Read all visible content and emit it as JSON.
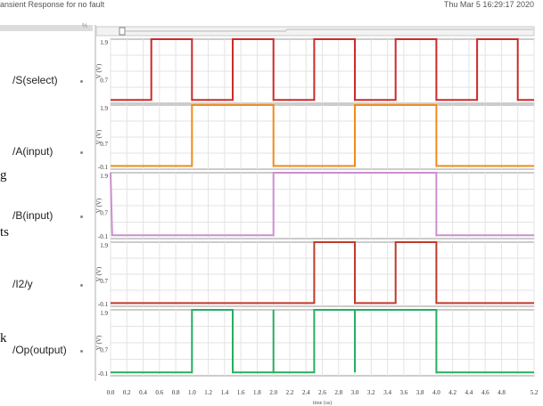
{
  "header": {
    "title": "ansient Response for no fault",
    "timestamp": "Thu Mar 5 16:29:17 2020",
    "sidebar_marker": "%"
  },
  "signals": [
    {
      "label": "/S(select)",
      "color": "#cc2a2a"
    },
    {
      "label": "/A(input)",
      "color": "#f08c1c"
    },
    {
      "label": "/B(input)",
      "color": "#cc8fcf"
    },
    {
      "label": "/I2/y",
      "color": "#c0392b"
    },
    {
      "label": "/Op(output)",
      "color": "#27ae60"
    }
  ],
  "edge_fragments": [
    "g",
    "ts",
    "k"
  ],
  "chart_data": {
    "type": "line",
    "xlabel": "time (us)",
    "xlim": [
      0,
      5.2
    ],
    "x_ticks": [
      "0.0",
      "0.2",
      "0.4",
      "0.6",
      "0.8",
      "1.0",
      "1.2",
      "1.4",
      "1.6",
      "1.8",
      "2.0",
      "2.2",
      "2.4",
      "2.6",
      "2.8",
      "3.0",
      "3.2",
      "3.4",
      "3.6",
      "3.8",
      "4.0",
      "4.2",
      "4.4",
      "4.6",
      "4.8",
      "5.2"
    ],
    "panels": [
      {
        "name": "/S(select)",
        "ylabel": "V (V)",
        "y_ticks": [
          "1.9",
          "0.7"
        ],
        "ylim": [
          0,
          1.9
        ],
        "x": [
          0,
          0.5,
          0.5,
          1.0,
          1.0,
          1.5,
          1.5,
          2.0,
          2.0,
          2.5,
          2.5,
          3.0,
          3.0,
          3.5,
          3.5,
          4.0,
          4.0,
          4.5,
          4.5,
          5.0,
          5.0,
          5.2
        ],
        "y": [
          0.1,
          0.1,
          1.9,
          1.9,
          0.1,
          0.1,
          1.9,
          1.9,
          0.1,
          0.1,
          1.9,
          1.9,
          0.1,
          0.1,
          1.9,
          1.9,
          0.1,
          0.1,
          1.9,
          1.9,
          0.1,
          0.1
        ]
      },
      {
        "name": "/A(input)",
        "ylabel": "V (V)",
        "y_ticks": [
          "1.9",
          "0.7",
          "-0.1"
        ],
        "ylim": [
          -0.1,
          1.9
        ],
        "x": [
          0,
          1.0,
          1.0,
          2.0,
          2.0,
          3.0,
          3.0,
          4.0,
          4.0,
          5.2
        ],
        "y": [
          0.0,
          0.0,
          1.9,
          1.9,
          0.0,
          0.0,
          1.9,
          1.9,
          0.0,
          0.0
        ]
      },
      {
        "name": "/B(input)",
        "ylabel": "V (V)",
        "y_ticks": [
          "1.9",
          "0.7",
          "-0.1"
        ],
        "ylim": [
          -0.1,
          1.9
        ],
        "x": [
          0,
          0.02,
          2.0,
          2.0,
          4.0,
          4.0,
          5.2
        ],
        "y": [
          1.9,
          0.0,
          0.0,
          1.9,
          1.9,
          0.0,
          0.0
        ]
      },
      {
        "name": "/I2/y",
        "ylabel": "V (V)",
        "y_ticks": [
          "1.9",
          "0.7",
          "-0.1"
        ],
        "ylim": [
          -0.1,
          1.9
        ],
        "x": [
          0,
          2.5,
          2.5,
          3.0,
          3.0,
          3.5,
          3.5,
          4.0,
          4.0,
          5.2
        ],
        "y": [
          0.0,
          0.0,
          1.9,
          1.9,
          0.0,
          0.0,
          1.9,
          1.9,
          0.0,
          0.0
        ]
      },
      {
        "name": "/Op(output)",
        "ylabel": "V (V)",
        "y_ticks": [
          "1.9",
          "0.7",
          "-0.1"
        ],
        "ylim": [
          -0.1,
          1.9
        ],
        "x": [
          0,
          1.0,
          1.0,
          1.5,
          1.5,
          2.0,
          2.0,
          2.0,
          2.0,
          2.5,
          2.5,
          3.0,
          3.0,
          3.0,
          3.0,
          4.0,
          4.0,
          5.2
        ],
        "y": [
          0.0,
          0.0,
          1.9,
          1.9,
          0.0,
          0.0,
          1.9,
          0.0,
          0.0,
          0.0,
          1.9,
          1.9,
          0.0,
          1.9,
          1.9,
          1.9,
          0.0,
          0.0
        ]
      }
    ]
  }
}
